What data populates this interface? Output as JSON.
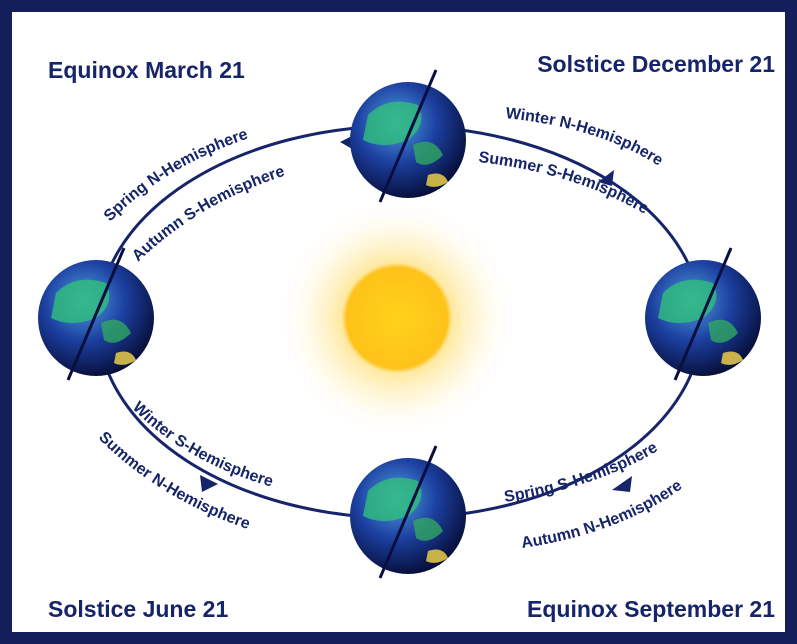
{
  "corners": [
    "Equinox March 21",
    "Solstice December 21",
    "Solstice June 21",
    "Equinox September 21"
  ],
  "orbit_labels": [
    "Spring N-Hemisphere",
    "Autumn S-Hemisphere",
    "Winter N-Hemisphere",
    "Summer S-Hemisphere",
    "Winter S-Hemisphere",
    "Summer N-Hemisphere",
    "Spring S-Hemisphere",
    "Autumn N-Hemisphere"
  ]
}
